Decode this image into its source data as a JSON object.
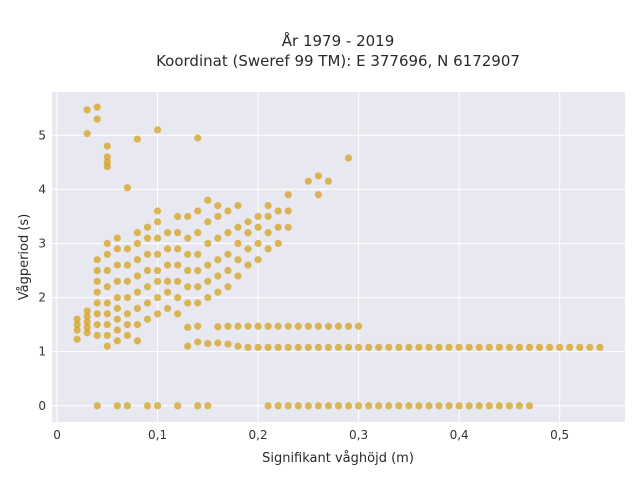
{
  "chart_data": {
    "type": "scatter",
    "title_line1": "År 1979 - 2019",
    "title_line2": "Koordinat (Sweref 99 TM): E 377696, N 6172907",
    "xlabel": "Signifikant våghöjd (m)",
    "ylabel": "Vågperiod (s)",
    "xlim": [
      -0.005,
      0.565
    ],
    "ylim": [
      -0.3,
      5.8
    ],
    "xticks": [
      0,
      0.1,
      0.2,
      0.3,
      0.4,
      0.5
    ],
    "xtick_labels": [
      "0",
      "0,1",
      "0,2",
      "0,3",
      "0,4",
      "0,5"
    ],
    "yticks": [
      0,
      1,
      2,
      3,
      4,
      5
    ],
    "ytick_labels": [
      "0",
      "1",
      "2",
      "3",
      "4",
      "5"
    ],
    "grid": true,
    "marker_color": "#d4a017",
    "plot_background": "#e8e8f0",
    "points": [
      [
        0.03,
        5.47
      ],
      [
        0.04,
        5.52
      ],
      [
        0.04,
        5.3
      ],
      [
        0.03,
        5.03
      ],
      [
        0.05,
        4.8
      ],
      [
        0.05,
        4.6
      ],
      [
        0.05,
        4.5
      ],
      [
        0.05,
        4.42
      ],
      [
        0.08,
        4.93
      ],
      [
        0.1,
        5.1
      ],
      [
        0.14,
        4.95
      ],
      [
        0.07,
        4.03
      ],
      [
        0.29,
        4.58
      ],
      [
        0.02,
        1.23
      ],
      [
        0.02,
        1.4
      ],
      [
        0.02,
        1.5
      ],
      [
        0.02,
        1.6
      ],
      [
        0.03,
        1.35
      ],
      [
        0.03,
        1.45
      ],
      [
        0.03,
        1.55
      ],
      [
        0.03,
        1.65
      ],
      [
        0.03,
        1.75
      ],
      [
        0.04,
        1.3
      ],
      [
        0.04,
        1.5
      ],
      [
        0.04,
        1.7
      ],
      [
        0.04,
        1.9
      ],
      [
        0.04,
        2.1
      ],
      [
        0.04,
        2.3
      ],
      [
        0.04,
        2.5
      ],
      [
        0.04,
        2.7
      ],
      [
        0.05,
        1.1
      ],
      [
        0.05,
        1.3
      ],
      [
        0.05,
        1.5
      ],
      [
        0.05,
        1.7
      ],
      [
        0.05,
        1.9
      ],
      [
        0.05,
        2.2
      ],
      [
        0.05,
        2.5
      ],
      [
        0.05,
        2.8
      ],
      [
        0.05,
        3.0
      ],
      [
        0.06,
        1.2
      ],
      [
        0.06,
        1.4
      ],
      [
        0.06,
        1.6
      ],
      [
        0.06,
        1.8
      ],
      [
        0.06,
        2.0
      ],
      [
        0.06,
        2.3
      ],
      [
        0.06,
        2.6
      ],
      [
        0.06,
        2.9
      ],
      [
        0.06,
        3.1
      ],
      [
        0.07,
        1.3
      ],
      [
        0.07,
        1.5
      ],
      [
        0.07,
        1.7
      ],
      [
        0.07,
        2.0
      ],
      [
        0.07,
        2.3
      ],
      [
        0.07,
        2.6
      ],
      [
        0.07,
        2.9
      ],
      [
        0.08,
        1.2
      ],
      [
        0.08,
        1.5
      ],
      [
        0.08,
        1.8
      ],
      [
        0.08,
        2.1
      ],
      [
        0.08,
        2.4
      ],
      [
        0.08,
        2.7
      ],
      [
        0.08,
        3.0
      ],
      [
        0.08,
        3.2
      ],
      [
        0.09,
        1.6
      ],
      [
        0.09,
        1.9
      ],
      [
        0.09,
        2.2
      ],
      [
        0.09,
        2.5
      ],
      [
        0.09,
        2.8
      ],
      [
        0.09,
        3.1
      ],
      [
        0.09,
        3.3
      ],
      [
        0.1,
        1.7
      ],
      [
        0.1,
        2.0
      ],
      [
        0.1,
        2.3
      ],
      [
        0.1,
        2.5
      ],
      [
        0.1,
        2.8
      ],
      [
        0.1,
        3.1
      ],
      [
        0.1,
        3.4
      ],
      [
        0.1,
        3.6
      ],
      [
        0.11,
        1.8
      ],
      [
        0.11,
        2.1
      ],
      [
        0.11,
        2.3
      ],
      [
        0.11,
        2.6
      ],
      [
        0.11,
        2.9
      ],
      [
        0.11,
        3.2
      ],
      [
        0.12,
        1.7
      ],
      [
        0.12,
        2.0
      ],
      [
        0.12,
        2.3
      ],
      [
        0.12,
        2.6
      ],
      [
        0.12,
        2.9
      ],
      [
        0.12,
        3.2
      ],
      [
        0.12,
        3.5
      ],
      [
        0.13,
        1.9
      ],
      [
        0.13,
        2.2
      ],
      [
        0.13,
        2.5
      ],
      [
        0.13,
        2.8
      ],
      [
        0.13,
        3.1
      ],
      [
        0.13,
        3.5
      ],
      [
        0.14,
        1.9
      ],
      [
        0.14,
        2.2
      ],
      [
        0.14,
        2.5
      ],
      [
        0.14,
        2.8
      ],
      [
        0.14,
        3.2
      ],
      [
        0.14,
        3.6
      ],
      [
        0.15,
        2.0
      ],
      [
        0.15,
        2.3
      ],
      [
        0.15,
        2.6
      ],
      [
        0.15,
        3.0
      ],
      [
        0.15,
        3.4
      ],
      [
        0.15,
        3.8
      ],
      [
        0.16,
        2.1
      ],
      [
        0.16,
        2.4
      ],
      [
        0.16,
        2.7
      ],
      [
        0.16,
        3.1
      ],
      [
        0.16,
        3.5
      ],
      [
        0.16,
        3.7
      ],
      [
        0.17,
        2.2
      ],
      [
        0.17,
        2.5
      ],
      [
        0.17,
        2.8
      ],
      [
        0.17,
        3.2
      ],
      [
        0.17,
        3.6
      ],
      [
        0.18,
        2.4
      ],
      [
        0.18,
        2.7
      ],
      [
        0.18,
        3.0
      ],
      [
        0.18,
        3.3
      ],
      [
        0.18,
        3.7
      ],
      [
        0.19,
        2.6
      ],
      [
        0.19,
        2.9
      ],
      [
        0.19,
        3.2
      ],
      [
        0.19,
        3.4
      ],
      [
        0.2,
        2.7
      ],
      [
        0.2,
        3.0
      ],
      [
        0.2,
        3.3
      ],
      [
        0.2,
        3.5
      ],
      [
        0.21,
        2.9
      ],
      [
        0.21,
        3.2
      ],
      [
        0.21,
        3.5
      ],
      [
        0.21,
        3.7
      ],
      [
        0.22,
        3.0
      ],
      [
        0.22,
        3.3
      ],
      [
        0.22,
        3.6
      ],
      [
        0.23,
        3.3
      ],
      [
        0.23,
        3.6
      ],
      [
        0.23,
        3.9
      ],
      [
        0.25,
        4.15
      ],
      [
        0.26,
        4.25
      ],
      [
        0.26,
        3.9
      ],
      [
        0.27,
        4.15
      ],
      [
        0.13,
        1.1
      ],
      [
        0.14,
        1.18
      ],
      [
        0.15,
        1.15
      ],
      [
        0.16,
        1.16
      ],
      [
        0.17,
        1.14
      ],
      [
        0.18,
        1.1
      ],
      [
        0.19,
        1.08
      ],
      [
        0.13,
        1.45
      ],
      [
        0.14,
        1.47
      ],
      [
        0.16,
        1.46
      ],
      [
        0.17,
        1.47
      ],
      [
        0.18,
        1.47
      ],
      [
        0.19,
        1.47
      ],
      [
        0.2,
        1.47
      ],
      [
        0.21,
        1.47
      ],
      [
        0.22,
        1.47
      ],
      [
        0.23,
        1.47
      ],
      [
        0.24,
        1.47
      ],
      [
        0.25,
        1.47
      ],
      [
        0.26,
        1.47
      ],
      [
        0.27,
        1.47
      ],
      [
        0.28,
        1.47
      ],
      [
        0.29,
        1.47
      ],
      [
        0.3,
        1.47
      ],
      [
        0.2,
        1.08
      ],
      [
        0.21,
        1.08
      ],
      [
        0.22,
        1.08
      ],
      [
        0.23,
        1.08
      ],
      [
        0.24,
        1.08
      ],
      [
        0.25,
        1.08
      ],
      [
        0.26,
        1.08
      ],
      [
        0.27,
        1.08
      ],
      [
        0.28,
        1.08
      ],
      [
        0.29,
        1.08
      ],
      [
        0.3,
        1.08
      ],
      [
        0.31,
        1.08
      ],
      [
        0.32,
        1.08
      ],
      [
        0.33,
        1.08
      ],
      [
        0.34,
        1.08
      ],
      [
        0.35,
        1.08
      ],
      [
        0.36,
        1.08
      ],
      [
        0.37,
        1.08
      ],
      [
        0.38,
        1.08
      ],
      [
        0.39,
        1.08
      ],
      [
        0.4,
        1.08
      ],
      [
        0.41,
        1.08
      ],
      [
        0.42,
        1.08
      ],
      [
        0.43,
        1.08
      ],
      [
        0.44,
        1.08
      ],
      [
        0.45,
        1.08
      ],
      [
        0.46,
        1.08
      ],
      [
        0.47,
        1.08
      ],
      [
        0.48,
        1.08
      ],
      [
        0.49,
        1.08
      ],
      [
        0.5,
        1.08
      ],
      [
        0.51,
        1.08
      ],
      [
        0.52,
        1.08
      ],
      [
        0.53,
        1.08
      ],
      [
        0.54,
        1.08
      ],
      [
        0.04,
        0
      ],
      [
        0.06,
        0
      ],
      [
        0.07,
        0
      ],
      [
        0.09,
        0
      ],
      [
        0.1,
        0
      ],
      [
        0.12,
        0
      ],
      [
        0.14,
        0
      ],
      [
        0.15,
        0
      ],
      [
        0.21,
        0
      ],
      [
        0.22,
        0
      ],
      [
        0.23,
        0
      ],
      [
        0.24,
        0
      ],
      [
        0.25,
        0
      ],
      [
        0.26,
        0
      ],
      [
        0.27,
        0
      ],
      [
        0.28,
        0
      ],
      [
        0.29,
        0
      ],
      [
        0.3,
        0
      ],
      [
        0.31,
        0
      ],
      [
        0.32,
        0
      ],
      [
        0.33,
        0
      ],
      [
        0.34,
        0
      ],
      [
        0.35,
        0
      ],
      [
        0.36,
        0
      ],
      [
        0.37,
        0
      ],
      [
        0.38,
        0
      ],
      [
        0.39,
        0
      ],
      [
        0.4,
        0
      ],
      [
        0.41,
        0
      ],
      [
        0.42,
        0
      ],
      [
        0.43,
        0
      ],
      [
        0.44,
        0
      ],
      [
        0.45,
        0
      ],
      [
        0.46,
        0
      ],
      [
        0.47,
        0
      ]
    ]
  }
}
